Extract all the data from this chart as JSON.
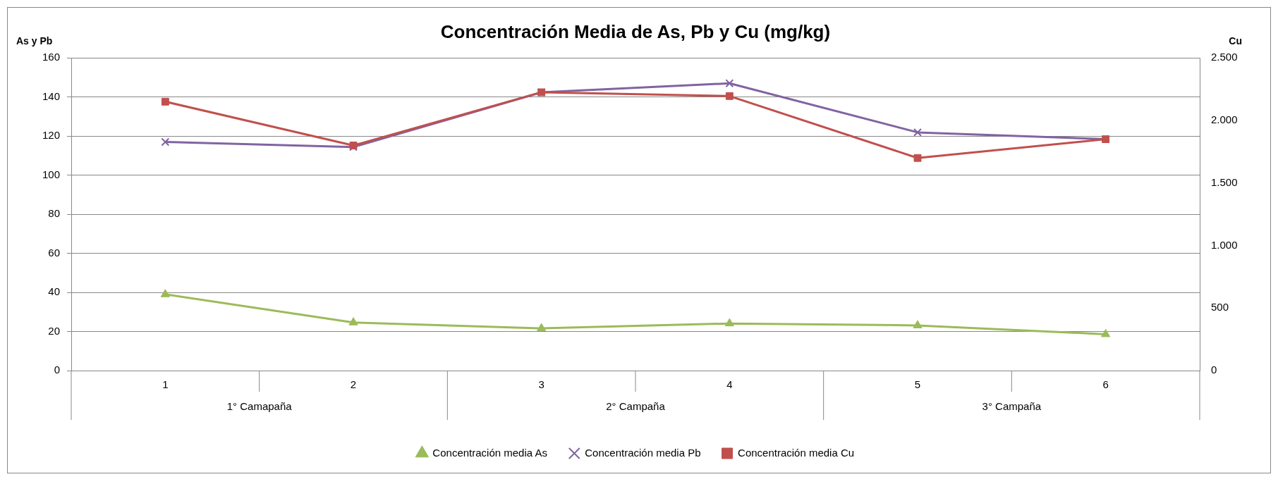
{
  "chart_data": {
    "type": "line",
    "title": "Concentración Media de As, Pb y Cu (mg/kg)",
    "ylabel": "As y Pb",
    "y2label": "Cu",
    "categories": [
      "1",
      "2",
      "3",
      "4",
      "5",
      "6"
    ],
    "annotations": [
      "1° Camapaña",
      "2° Campaña",
      "3° Campaña"
    ],
    "series": [
      {
        "name": "Concentración media As",
        "color": "#9bbb59",
        "marker": "triangle",
        "values": [
          39,
          24.6,
          21.6,
          24.1,
          23.1,
          18.6
        ]
      },
      {
        "name": "Concentración media Pb",
        "color": "#8064a2",
        "marker": "cross",
        "values": [
          117,
          114.4,
          142.4,
          147,
          121.9,
          118.4
        ]
      },
      {
        "name": "Concentración media Cu",
        "color": "#c0504d",
        "marker": "square",
        "axis": "y2",
        "values": [
          2150,
          1800,
          2225,
          2195,
          1700,
          1850
        ]
      }
    ],
    "ylim": [
      0,
      160
    ],
    "yticks": [
      0,
      20,
      40,
      60,
      80,
      100,
      120,
      140,
      160
    ],
    "y2lim": [
      0,
      2500
    ],
    "y2ticks": [
      {
        "value": 0,
        "label": "0"
      },
      {
        "value": 500,
        "label": "500"
      },
      {
        "value": 1000,
        "label": "1.000"
      },
      {
        "value": 1500,
        "label": "1.500"
      },
      {
        "value": 2000,
        "label": "2.000"
      },
      {
        "value": 2500,
        "label": "2.500"
      }
    ],
    "grid": "y",
    "legend": "bottom"
  }
}
